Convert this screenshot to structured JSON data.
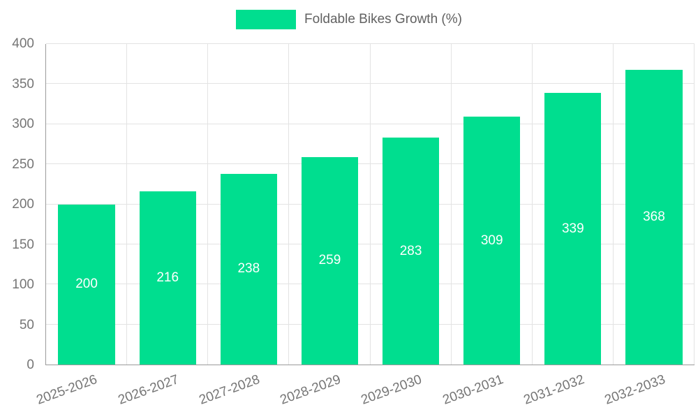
{
  "chart_data": {
    "type": "bar",
    "title": "",
    "legend": "Foldable Bikes Growth (%)",
    "categories": [
      "2025-2026",
      "2026-2027",
      "2027-2028",
      "2028-2029",
      "2029-2030",
      "2030-2031",
      "2031-2032",
      "2032-2033"
    ],
    "values": [
      200,
      216,
      238,
      259,
      283,
      309,
      339,
      368
    ],
    "xlabel": "",
    "ylabel": "",
    "ylim": [
      0,
      400
    ],
    "yticks": [
      0,
      50,
      100,
      150,
      200,
      250,
      300,
      350,
      400
    ],
    "bar_color": "#00de8f",
    "grid": true,
    "legend_position": "top",
    "value_label_color": "#ffffff"
  }
}
